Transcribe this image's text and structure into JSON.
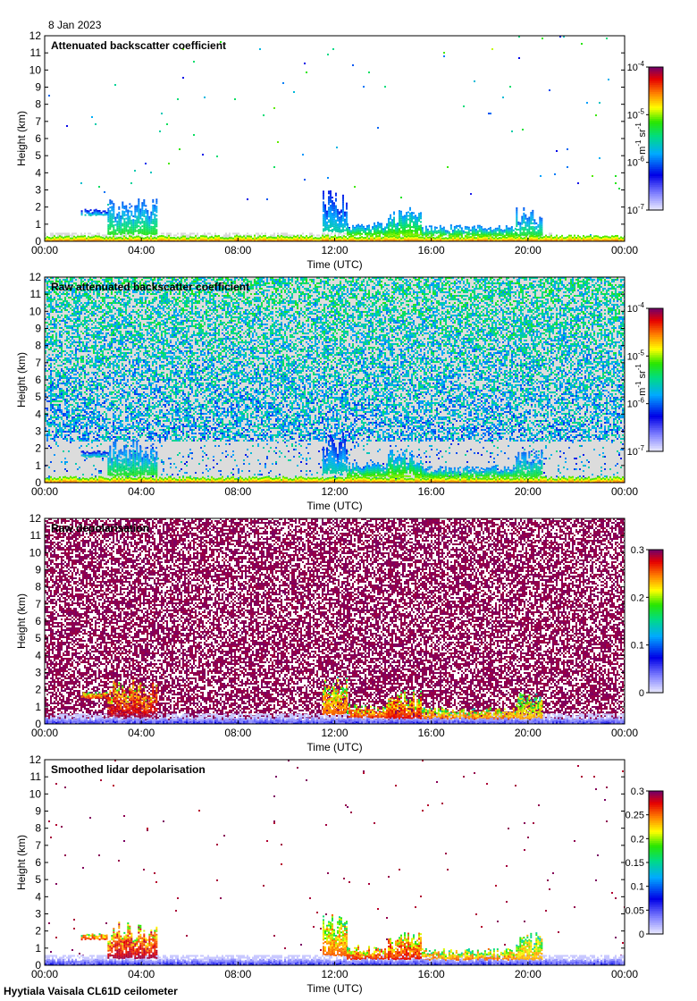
{
  "figure": {
    "date": "8 Jan 2023",
    "footer": "Hyytiala Vaisala CL61D ceilometer",
    "xlabel": "Time (UTC)",
    "ylabel": "Height (km)",
    "x_ticks": [
      "00:00",
      "04:00",
      "08:00",
      "12:00",
      "16:00",
      "20:00",
      "00:00"
    ],
    "y_ticks": [
      "0",
      "1",
      "2",
      "3",
      "4",
      "5",
      "6",
      "7",
      "8",
      "9",
      "10",
      "11",
      "12"
    ]
  },
  "chart_data": [
    {
      "type": "heatmap",
      "title": "Attenuated backscatter coefficient",
      "xlabel": "Time (UTC)",
      "ylabel": "Height (km)",
      "xlim": [
        0,
        24
      ],
      "ylim": [
        0,
        12
      ],
      "colorbar": {
        "scale": "log",
        "range": [
          1e-07,
          0.0001
        ],
        "ticks": [
          {
            "base": "10",
            "exp": "-4",
            "value": 0.0001
          },
          {
            "base": "10",
            "exp": "-5",
            "value": 1e-05
          },
          {
            "base": "10",
            "exp": "-6",
            "value": 1e-06
          },
          {
            "base": "10",
            "exp": "-7",
            "value": 1e-07
          }
        ],
        "unit": {
          "m": "m",
          "m_exp": "-1",
          "sr": "sr",
          "sr_exp": "-1"
        }
      },
      "background": "#ffffff",
      "noise": {
        "density": 0.0025,
        "level_range": [
          0.2,
          0.65
        ],
        "height_bias": 0.25
      },
      "haze": {
        "top_km": 0.5,
        "until_hours": 21,
        "color": "#d8d8d8",
        "density": 0.5
      }
    },
    {
      "type": "heatmap",
      "title": "Raw attenuated backscatter coefficient",
      "xlabel": "Time (UTC)",
      "ylabel": "Height (km)",
      "xlim": [
        0,
        24
      ],
      "ylim": [
        0,
        12
      ],
      "colorbar": {
        "scale": "log",
        "range": [
          1e-07,
          0.0001
        ],
        "ticks": [
          {
            "base": "10",
            "exp": "-4",
            "value": 0.0001
          },
          {
            "base": "10",
            "exp": "-5",
            "value": 1e-05
          },
          {
            "base": "10",
            "exp": "-6",
            "value": 1e-06
          },
          {
            "base": "10",
            "exp": "-7",
            "value": 1e-07
          }
        ],
        "unit": {
          "m": "m",
          "m_exp": "-1",
          "sr": "sr",
          "sr_exp": "-1"
        }
      },
      "background": "#dcdcdc",
      "noise": {
        "density": 0.55,
        "level_range": [
          0.25,
          0.5
        ],
        "height_bias": 0.6
      },
      "haze": {
        "top_km": 2.5,
        "until_hours": 24,
        "color": "#d8d8d8",
        "density": 0.0
      }
    },
    {
      "type": "heatmap",
      "title": "Raw depolarisation",
      "xlabel": "Time (UTC)",
      "ylabel": "Height (km)",
      "xlim": [
        0,
        24
      ],
      "ylim": [
        0,
        12
      ],
      "colorbar": {
        "scale": "linear",
        "range": [
          0,
          0.3
        ],
        "ticks": [
          {
            "label": "0.3",
            "value": 0.3
          },
          {
            "label": "0.2",
            "value": 0.2
          },
          {
            "label": "0.1",
            "value": 0.1
          },
          {
            "label": "0",
            "value": 0
          }
        ]
      },
      "background": "#ffffff",
      "noise": {
        "density": 0.62,
        "level_range": [
          0.97,
          1.0
        ],
        "height_bias": 0.0
      },
      "haze": {
        "top_km": 0.6,
        "until_hours": 24,
        "color": "#c8c8ff",
        "density": 0.6
      }
    },
    {
      "type": "heatmap",
      "title": "Smoothed lidar depolarisation",
      "xlabel": "Time (UTC)",
      "ylabel": "Height (km)",
      "xlim": [
        0,
        24
      ],
      "ylim": [
        0,
        12
      ],
      "colorbar": {
        "scale": "linear",
        "range": [
          0,
          0.3
        ],
        "ticks": [
          {
            "label": "0.3",
            "value": 0.3
          },
          {
            "label": "0.25",
            "value": 0.25
          },
          {
            "label": "0.2",
            "value": 0.2
          },
          {
            "label": "0.15",
            "value": 0.15
          },
          {
            "label": "0.1",
            "value": 0.1
          },
          {
            "label": "0.05",
            "value": 0.05
          },
          {
            "label": "0",
            "value": 0
          }
        ]
      },
      "background": "#ffffff",
      "noise": {
        "density": 0.004,
        "level_range": [
          0.95,
          1.0
        ],
        "height_bias": 0.0
      },
      "haze": {
        "top_km": 0.6,
        "until_hours": 24,
        "color": "#c8c8ff",
        "density": 0.65
      }
    }
  ],
  "features": {
    "cloud_layers": [
      {
        "t0": 2.6,
        "t1": 4.6,
        "base_km": 0.45,
        "top_km": 2.6,
        "level_backscatter": 0.55,
        "level_depol": 0.97
      },
      {
        "t0": 1.5,
        "t1": 2.6,
        "base_km": 1.55,
        "top_km": 1.9,
        "level_backscatter": 0.45,
        "level_depol": 0.9
      },
      {
        "t0": 11.5,
        "t1": 12.5,
        "base_km": 0.6,
        "top_km": 3.0,
        "level_backscatter": 0.45,
        "level_depol": 0.85
      },
      {
        "t0": 12.5,
        "t1": 14.2,
        "base_km": 0.4,
        "top_km": 1.2,
        "level_backscatter": 0.6,
        "level_depol": 0.9
      },
      {
        "t0": 14.2,
        "t1": 15.6,
        "base_km": 0.35,
        "top_km": 2.0,
        "level_backscatter": 0.62,
        "level_depol": 0.92
      },
      {
        "t0": 15.6,
        "t1": 19.5,
        "base_km": 0.35,
        "top_km": 1.0,
        "level_backscatter": 0.6,
        "level_depol": 0.85
      },
      {
        "t0": 19.5,
        "t1": 20.6,
        "base_km": 0.35,
        "top_km": 2.0,
        "level_backscatter": 0.55,
        "level_depol": 0.8
      }
    ],
    "surface_layer": {
      "t0": 0.0,
      "t1": 24.0,
      "top_km": 0.3,
      "level_backscatter": 0.85,
      "level_depol": 0.1
    }
  }
}
